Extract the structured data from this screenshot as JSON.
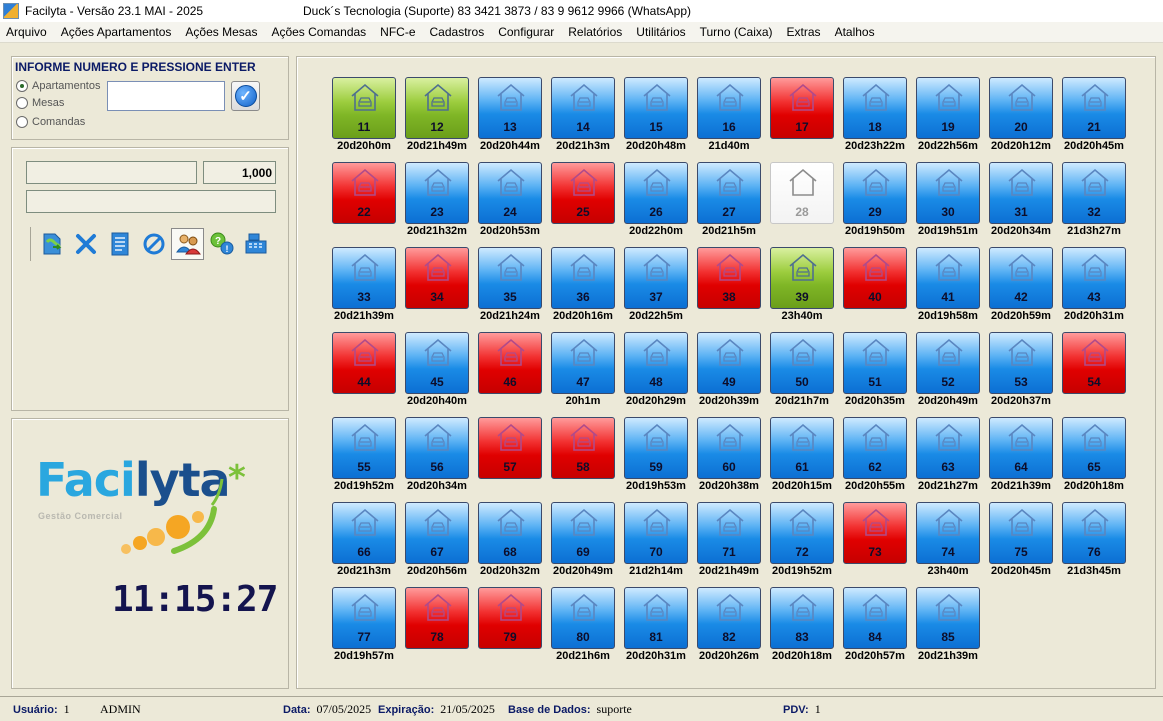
{
  "window": {
    "title": "Facilyta - Versão 23.1 MAI - 2025",
    "support": "Duck´s Tecnologia (Suporte)  83 3421 3873 / 83 9 9612 9966 (WhatsApp)"
  },
  "menu": [
    "Arquivo",
    "Ações Apartamentos",
    "Ações Mesas",
    "Ações Comandas",
    "NFC-e",
    "Cadastros",
    "Configurar",
    "Relatórios",
    "Utilitários",
    "Turno (Caixa)",
    "Extras",
    "Atalhos"
  ],
  "lookup": {
    "title": "INFORME NUMERO E PRESSIONE ENTER",
    "options": [
      "Apartamentos",
      "Mesas",
      "Comandas"
    ],
    "selected": "Apartamentos",
    "value": ""
  },
  "order": {
    "quantity": "1,000"
  },
  "toolbar_icons": [
    "add-item-icon",
    "remove-item-icon",
    "document-icon",
    "cancel-icon",
    "users-icon",
    "help-icon",
    "cash-register-icon"
  ],
  "logo": {
    "brand_1": "Faci",
    "brand_2": "lyta",
    "subtitle": "Gestão Comercial"
  },
  "clock": "11:15:27",
  "colors": {
    "occupied": "#1a8be6",
    "alert": "#e00000",
    "available": "#7fb626",
    "blocked": "#f3f3f3"
  },
  "rooms": [
    {
      "num": "11",
      "status": "green",
      "time": "20d20h0m"
    },
    {
      "num": "12",
      "status": "green",
      "time": "20d21h49m"
    },
    {
      "num": "13",
      "status": "blue",
      "time": "20d20h44m"
    },
    {
      "num": "14",
      "status": "blue",
      "time": "20d21h3m"
    },
    {
      "num": "15",
      "status": "blue",
      "time": "20d20h48m"
    },
    {
      "num": "16",
      "status": "blue",
      "time": "21d40m"
    },
    {
      "num": "17",
      "status": "red",
      "time": ""
    },
    {
      "num": "18",
      "status": "blue",
      "time": "20d23h22m"
    },
    {
      "num": "19",
      "status": "blue",
      "time": "20d22h56m"
    },
    {
      "num": "20",
      "status": "blue",
      "time": "20d20h12m"
    },
    {
      "num": "21",
      "status": "blue",
      "time": "20d20h45m"
    },
    {
      "num": "22",
      "status": "red",
      "time": ""
    },
    {
      "num": "23",
      "status": "blue",
      "time": "20d21h32m"
    },
    {
      "num": "24",
      "status": "blue",
      "time": "20d20h53m"
    },
    {
      "num": "25",
      "status": "red",
      "time": ""
    },
    {
      "num": "26",
      "status": "blue",
      "time": "20d22h0m"
    },
    {
      "num": "27",
      "status": "blue",
      "time": "20d21h5m"
    },
    {
      "num": "28",
      "status": "white",
      "time": ""
    },
    {
      "num": "29",
      "status": "blue",
      "time": "20d19h50m"
    },
    {
      "num": "30",
      "status": "blue",
      "time": "20d19h51m"
    },
    {
      "num": "31",
      "status": "blue",
      "time": "20d20h34m"
    },
    {
      "num": "32",
      "status": "blue",
      "time": "21d3h27m"
    },
    {
      "num": "33",
      "status": "blue",
      "time": "20d21h39m"
    },
    {
      "num": "34",
      "status": "red",
      "time": ""
    },
    {
      "num": "35",
      "status": "blue",
      "time": "20d21h24m"
    },
    {
      "num": "36",
      "status": "blue",
      "time": "20d20h16m"
    },
    {
      "num": "37",
      "status": "blue",
      "time": "20d22h5m"
    },
    {
      "num": "38",
      "status": "red",
      "time": ""
    },
    {
      "num": "39",
      "status": "green",
      "time": "23h40m"
    },
    {
      "num": "40",
      "status": "red",
      "time": ""
    },
    {
      "num": "41",
      "status": "blue",
      "time": "20d19h58m"
    },
    {
      "num": "42",
      "status": "blue",
      "time": "20d20h59m"
    },
    {
      "num": "43",
      "status": "blue",
      "time": "20d20h31m"
    },
    {
      "num": "44",
      "status": "red",
      "time": ""
    },
    {
      "num": "45",
      "status": "blue",
      "time": "20d20h40m"
    },
    {
      "num": "46",
      "status": "red",
      "time": ""
    },
    {
      "num": "47",
      "status": "blue",
      "time": "20h1m"
    },
    {
      "num": "48",
      "status": "blue",
      "time": "20d20h29m"
    },
    {
      "num": "49",
      "status": "blue",
      "time": "20d20h39m"
    },
    {
      "num": "50",
      "status": "blue",
      "time": "20d21h7m"
    },
    {
      "num": "51",
      "status": "blue",
      "time": "20d20h35m"
    },
    {
      "num": "52",
      "status": "blue",
      "time": "20d20h49m"
    },
    {
      "num": "53",
      "status": "blue",
      "time": "20d20h37m"
    },
    {
      "num": "54",
      "status": "red",
      "time": ""
    },
    {
      "num": "55",
      "status": "blue",
      "time": "20d19h52m"
    },
    {
      "num": "56",
      "status": "blue",
      "time": "20d20h34m"
    },
    {
      "num": "57",
      "status": "red",
      "time": ""
    },
    {
      "num": "58",
      "status": "red",
      "time": ""
    },
    {
      "num": "59",
      "status": "blue",
      "time": "20d19h53m"
    },
    {
      "num": "60",
      "status": "blue",
      "time": "20d20h38m"
    },
    {
      "num": "61",
      "status": "blue",
      "time": "20d20h15m"
    },
    {
      "num": "62",
      "status": "blue",
      "time": "20d20h55m"
    },
    {
      "num": "63",
      "status": "blue",
      "time": "20d21h27m"
    },
    {
      "num": "64",
      "status": "blue",
      "time": "20d21h39m"
    },
    {
      "num": "65",
      "status": "blue",
      "time": "20d20h18m"
    },
    {
      "num": "66",
      "status": "blue",
      "time": "20d21h3m"
    },
    {
      "num": "67",
      "status": "blue",
      "time": "20d20h56m"
    },
    {
      "num": "68",
      "status": "blue",
      "time": "20d20h32m"
    },
    {
      "num": "69",
      "status": "blue",
      "time": "20d20h49m"
    },
    {
      "num": "70",
      "status": "blue",
      "time": "21d2h14m"
    },
    {
      "num": "71",
      "status": "blue",
      "time": "20d21h49m"
    },
    {
      "num": "72",
      "status": "blue",
      "time": "20d19h52m"
    },
    {
      "num": "73",
      "status": "red",
      "time": ""
    },
    {
      "num": "74",
      "status": "blue",
      "time": "23h40m"
    },
    {
      "num": "75",
      "status": "blue",
      "time": "20d20h45m"
    },
    {
      "num": "76",
      "status": "blue",
      "time": "21d3h45m"
    },
    {
      "num": "77",
      "status": "blue",
      "time": "20d19h57m"
    },
    {
      "num": "78",
      "status": "red",
      "time": ""
    },
    {
      "num": "79",
      "status": "red",
      "time": ""
    },
    {
      "num": "80",
      "status": "blue",
      "time": "20d21h6m"
    },
    {
      "num": "81",
      "status": "blue",
      "time": "20d20h31m"
    },
    {
      "num": "82",
      "status": "blue",
      "time": "20d20h26m"
    },
    {
      "num": "83",
      "status": "blue",
      "time": "20d20h18m"
    },
    {
      "num": "84",
      "status": "blue",
      "time": "20d20h57m"
    },
    {
      "num": "85",
      "status": "blue",
      "time": "20d21h39m"
    }
  ],
  "status_bar": {
    "user_label": "Usuário:",
    "user_id": "1",
    "user_name": "ADMIN",
    "date_label": "Data:",
    "date": "07/05/2025",
    "expiration_label": "Expiração:",
    "expiration": "21/05/2025",
    "db_label": "Base de Dados:",
    "db": "suporte",
    "pdv_label": "PDV:",
    "pdv": "1"
  }
}
